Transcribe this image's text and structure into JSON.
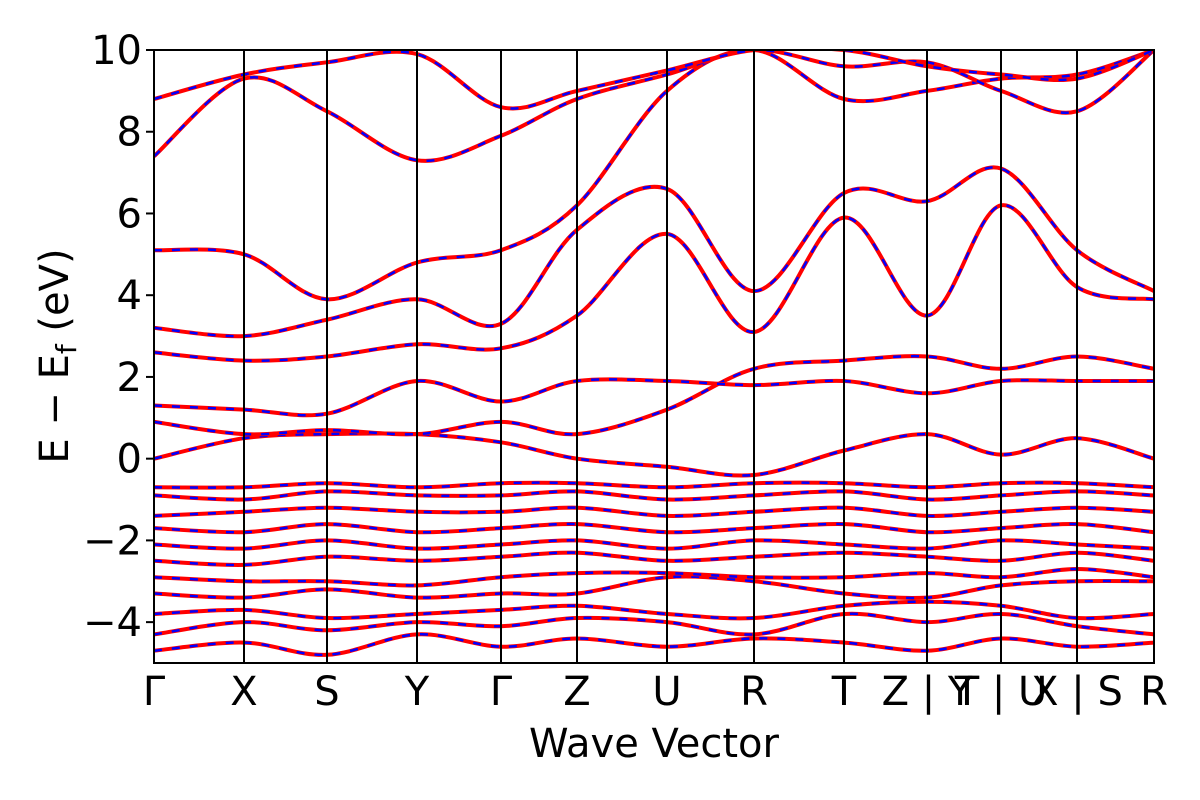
{
  "chart_data": {
    "type": "line",
    "title": "",
    "xlabel": "Wave Vector",
    "ylabel_main": "E − E",
    "ylabel_sub": "f",
    "ylabel_unit": " (eV)",
    "ylim": [
      -5,
      10
    ],
    "yticks": [
      {
        "value": -4,
        "label": "−4"
      },
      {
        "value": -2,
        "label": "−2"
      },
      {
        "value": 0,
        "label": "0"
      },
      {
        "value": 2,
        "label": "2"
      },
      {
        "value": 4,
        "label": "4"
      },
      {
        "value": 6,
        "label": "6"
      },
      {
        "value": 8,
        "label": "8"
      },
      {
        "value": 10,
        "label": "10"
      }
    ],
    "kpath_labels": [
      "Γ",
      "X",
      "S",
      "Y",
      "Γ",
      "Z",
      "U",
      "R",
      "T",
      "Z | Y",
      "T | U",
      "X | S",
      "R"
    ],
    "kpath_positions": [
      0,
      1,
      2,
      3,
      4,
      5,
      6,
      7,
      8,
      9,
      10,
      11,
      12
    ],
    "kpath_distances": [
      0,
      0.9,
      1.73,
      2.63,
      3.47,
      4.23,
      5.13,
      6.0,
      6.9,
      7.73,
      8.47,
      9.23,
      10.0
    ],
    "grid": false,
    "legend": "none",
    "colors": {
      "spin_up": "#ff0000",
      "spin_down": "#0000ff",
      "axis": "#000000"
    },
    "line_style": {
      "spin_up": "solid",
      "spin_down": "dashed"
    },
    "bands": [
      [
        [
          0,
          -4.7
        ],
        [
          0.9,
          -4.5
        ],
        [
          1.73,
          -4.8
        ],
        [
          2.63,
          -4.3
        ],
        [
          3.47,
          -4.6
        ],
        [
          4.23,
          -4.4
        ],
        [
          5.13,
          -4.6
        ],
        [
          6.0,
          -4.4
        ],
        [
          6.9,
          -4.5
        ],
        [
          7.73,
          -4.7
        ],
        [
          8.47,
          -4.4
        ],
        [
          9.23,
          -4.6
        ],
        [
          10.0,
          -4.5
        ]
      ],
      [
        [
          0,
          -4.3
        ],
        [
          0.9,
          -4.0
        ],
        [
          1.73,
          -4.2
        ],
        [
          2.63,
          -4.0
        ],
        [
          3.47,
          -4.1
        ],
        [
          4.23,
          -3.9
        ],
        [
          5.13,
          -4.0
        ],
        [
          6.0,
          -4.3
        ],
        [
          6.9,
          -3.8
        ],
        [
          7.73,
          -4.0
        ],
        [
          8.47,
          -3.8
        ],
        [
          9.23,
          -4.1
        ],
        [
          10.0,
          -4.3
        ]
      ],
      [
        [
          0,
          -3.8
        ],
        [
          0.9,
          -3.7
        ],
        [
          1.73,
          -3.9
        ],
        [
          2.63,
          -3.8
        ],
        [
          3.47,
          -3.7
        ],
        [
          4.23,
          -3.6
        ],
        [
          5.13,
          -3.8
        ],
        [
          6.0,
          -3.9
        ],
        [
          6.9,
          -3.6
        ],
        [
          7.73,
          -3.5
        ],
        [
          8.47,
          -3.6
        ],
        [
          9.23,
          -3.9
        ],
        [
          10.0,
          -3.8
        ]
      ],
      [
        [
          0,
          -3.3
        ],
        [
          0.9,
          -3.4
        ],
        [
          1.73,
          -3.2
        ],
        [
          2.63,
          -3.4
        ],
        [
          3.47,
          -3.3
        ],
        [
          4.23,
          -3.3
        ],
        [
          5.13,
          -2.9
        ],
        [
          6.0,
          -3.0
        ],
        [
          6.9,
          -3.3
        ],
        [
          7.73,
          -3.4
        ],
        [
          8.47,
          -3.1
        ],
        [
          9.23,
          -3.0
        ],
        [
          10.0,
          -3.0
        ]
      ],
      [
        [
          0,
          -2.9
        ],
        [
          0.9,
          -3.0
        ],
        [
          1.73,
          -3.0
        ],
        [
          2.63,
          -3.1
        ],
        [
          3.47,
          -2.9
        ],
        [
          4.23,
          -2.8
        ],
        [
          5.13,
          -2.8
        ],
        [
          6.0,
          -2.9
        ],
        [
          6.9,
          -2.9
        ],
        [
          7.73,
          -2.8
        ],
        [
          8.47,
          -2.9
        ],
        [
          9.23,
          -2.7
        ],
        [
          10.0,
          -2.9
        ]
      ],
      [
        [
          0,
          -2.5
        ],
        [
          0.9,
          -2.6
        ],
        [
          1.73,
          -2.4
        ],
        [
          2.63,
          -2.5
        ],
        [
          3.47,
          -2.4
        ],
        [
          4.23,
          -2.3
        ],
        [
          5.13,
          -2.5
        ],
        [
          6.0,
          -2.4
        ],
        [
          6.9,
          -2.3
        ],
        [
          7.73,
          -2.4
        ],
        [
          8.47,
          -2.5
        ],
        [
          9.23,
          -2.3
        ],
        [
          10.0,
          -2.5
        ]
      ],
      [
        [
          0,
          -2.1
        ],
        [
          0.9,
          -2.2
        ],
        [
          1.73,
          -2.0
        ],
        [
          2.63,
          -2.2
        ],
        [
          3.47,
          -2.1
        ],
        [
          4.23,
          -2.0
        ],
        [
          5.13,
          -2.2
        ],
        [
          6.0,
          -2.0
        ],
        [
          6.9,
          -2.1
        ],
        [
          7.73,
          -2.2
        ],
        [
          8.47,
          -2.0
        ],
        [
          9.23,
          -2.1
        ],
        [
          10.0,
          -2.2
        ]
      ],
      [
        [
          0,
          -1.7
        ],
        [
          0.9,
          -1.8
        ],
        [
          1.73,
          -1.6
        ],
        [
          2.63,
          -1.8
        ],
        [
          3.47,
          -1.7
        ],
        [
          4.23,
          -1.6
        ],
        [
          5.13,
          -1.8
        ],
        [
          6.0,
          -1.7
        ],
        [
          6.9,
          -1.6
        ],
        [
          7.73,
          -1.8
        ],
        [
          8.47,
          -1.7
        ],
        [
          9.23,
          -1.6
        ],
        [
          10.0,
          -1.8
        ]
      ],
      [
        [
          0,
          -1.4
        ],
        [
          0.9,
          -1.3
        ],
        [
          1.73,
          -1.2
        ],
        [
          2.63,
          -1.3
        ],
        [
          3.47,
          -1.3
        ],
        [
          4.23,
          -1.2
        ],
        [
          5.13,
          -1.4
        ],
        [
          6.0,
          -1.3
        ],
        [
          6.9,
          -1.2
        ],
        [
          7.73,
          -1.4
        ],
        [
          8.47,
          -1.3
        ],
        [
          9.23,
          -1.2
        ],
        [
          10.0,
          -1.3
        ]
      ],
      [
        [
          0,
          -0.9
        ],
        [
          0.9,
          -1.0
        ],
        [
          1.73,
          -0.8
        ],
        [
          2.63,
          -0.9
        ],
        [
          3.47,
          -0.9
        ],
        [
          4.23,
          -0.8
        ],
        [
          5.13,
          -1.0
        ],
        [
          6.0,
          -0.9
        ],
        [
          6.9,
          -0.8
        ],
        [
          7.73,
          -1.0
        ],
        [
          8.47,
          -0.9
        ],
        [
          9.23,
          -0.8
        ],
        [
          10.0,
          -0.9
        ]
      ],
      [
        [
          0,
          -0.7
        ],
        [
          0.9,
          -0.7
        ],
        [
          1.73,
          -0.6
        ],
        [
          2.63,
          -0.7
        ],
        [
          3.47,
          -0.6
        ],
        [
          4.23,
          -0.6
        ],
        [
          5.13,
          -0.7
        ],
        [
          6.0,
          -0.6
        ],
        [
          6.9,
          -0.6
        ],
        [
          7.73,
          -0.7
        ],
        [
          8.47,
          -0.6
        ],
        [
          9.23,
          -0.6
        ],
        [
          10.0,
          -0.7
        ]
      ],
      [
        [
          0,
          0.0
        ],
        [
          0.9,
          0.5
        ],
        [
          1.73,
          0.6
        ],
        [
          2.63,
          0.6
        ],
        [
          3.47,
          0.4
        ],
        [
          4.23,
          0.0
        ],
        [
          5.13,
          -0.2
        ],
        [
          6.0,
          -0.4
        ],
        [
          6.9,
          0.2
        ],
        [
          7.73,
          0.6
        ],
        [
          8.47,
          0.1
        ],
        [
          9.23,
          0.5
        ],
        [
          10.0,
          0.0
        ]
      ],
      [
        [
          0,
          0.9
        ],
        [
          0.9,
          0.6
        ],
        [
          1.73,
          0.7
        ],
        [
          2.63,
          0.6
        ],
        [
          3.47,
          0.9
        ],
        [
          4.23,
          0.6
        ],
        [
          5.13,
          1.2
        ],
        [
          6.0,
          2.2
        ],
        [
          6.9,
          2.4
        ],
        [
          7.73,
          2.5
        ],
        [
          8.47,
          2.2
        ],
        [
          9.23,
          2.5
        ],
        [
          10.0,
          2.2
        ]
      ],
      [
        [
          0,
          1.3
        ],
        [
          0.9,
          1.2
        ],
        [
          1.73,
          1.1
        ],
        [
          2.63,
          1.9
        ],
        [
          3.47,
          1.4
        ],
        [
          4.23,
          1.9
        ],
        [
          5.13,
          1.9
        ],
        [
          6.0,
          1.8
        ],
        [
          6.9,
          1.9
        ],
        [
          7.73,
          1.6
        ],
        [
          8.47,
          1.9
        ],
        [
          9.23,
          1.9
        ],
        [
          10.0,
          1.9
        ]
      ],
      [
        [
          0,
          2.6
        ],
        [
          0.9,
          2.4
        ],
        [
          1.73,
          2.5
        ],
        [
          2.63,
          2.8
        ],
        [
          3.47,
          2.7
        ],
        [
          4.23,
          3.5
        ],
        [
          5.13,
          5.5
        ],
        [
          6.0,
          3.1
        ],
        [
          6.9,
          5.9
        ],
        [
          7.73,
          3.5
        ],
        [
          8.47,
          6.2
        ],
        [
          9.23,
          4.2
        ],
        [
          10.0,
          3.9
        ]
      ],
      [
        [
          0,
          3.2
        ],
        [
          0.9,
          3.0
        ],
        [
          1.73,
          3.4
        ],
        [
          2.63,
          3.9
        ],
        [
          3.47,
          3.3
        ],
        [
          4.23,
          5.6
        ],
        [
          5.13,
          6.6
        ],
        [
          6.0,
          4.1
        ],
        [
          6.9,
          6.5
        ],
        [
          7.73,
          6.3
        ],
        [
          8.47,
          7.1
        ],
        [
          9.23,
          5.1
        ],
        [
          10.0,
          4.1
        ]
      ],
      [
        [
          0,
          5.1
        ],
        [
          0.9,
          5.0
        ],
        [
          1.73,
          3.9
        ],
        [
          2.63,
          4.8
        ],
        [
          3.47,
          5.1
        ],
        [
          4.23,
          6.2
        ],
        [
          5.13,
          9.0
        ],
        [
          6.0,
          10.0
        ],
        [
          6.9,
          8.8
        ],
        [
          7.73,
          9.0
        ],
        [
          8.47,
          9.3
        ],
        [
          9.23,
          9.4
        ],
        [
          10.0,
          10.0
        ]
      ],
      [
        [
          0,
          7.4
        ],
        [
          0.9,
          9.3
        ],
        [
          1.73,
          8.5
        ],
        [
          2.63,
          7.3
        ],
        [
          3.47,
          7.9
        ],
        [
          4.23,
          8.8
        ],
        [
          5.13,
          9.4
        ],
        [
          6.0,
          10.0
        ],
        [
          6.9,
          9.6
        ],
        [
          7.73,
          9.7
        ],
        [
          8.47,
          9.0
        ],
        [
          9.23,
          8.5
        ],
        [
          10.0,
          10.0
        ]
      ],
      [
        [
          0,
          8.8
        ],
        [
          0.9,
          9.4
        ],
        [
          1.73,
          9.7
        ],
        [
          2.63,
          9.9
        ],
        [
          3.47,
          8.6
        ],
        [
          4.23,
          9.0
        ],
        [
          5.13,
          9.5
        ],
        [
          6.0,
          10.0
        ],
        [
          6.9,
          10.0
        ],
        [
          7.73,
          9.6
        ],
        [
          8.47,
          9.4
        ],
        [
          9.23,
          9.3
        ],
        [
          10.0,
          10.0
        ]
      ]
    ]
  }
}
